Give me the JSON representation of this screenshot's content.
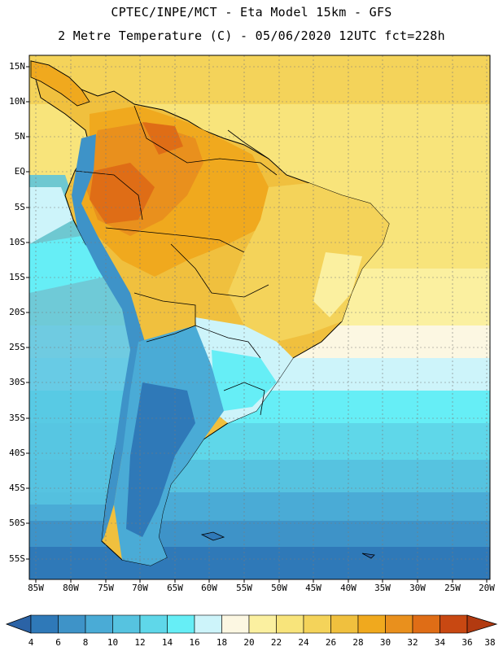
{
  "header": {
    "line1": "CPTEC/INPE/MCT -  Eta Model 15km - GFS",
    "line2": "2 Metre Temperature (C) - 05/06/2020 12UTC fct=228h"
  },
  "map": {
    "lat_labels": [
      "15N",
      "10N",
      "5N",
      "EQ",
      "5S",
      "10S",
      "15S",
      "20S",
      "25S",
      "30S",
      "35S",
      "40S",
      "45S",
      "50S",
      "55S"
    ],
    "lon_labels": [
      "85W",
      "80W",
      "75W",
      "70W",
      "65W",
      "60W",
      "55W",
      "50W",
      "45W",
      "40W",
      "35W",
      "30W",
      "25W",
      "20W"
    ]
  },
  "legend": {
    "labels": [
      "4",
      "6",
      "8",
      "10",
      "12",
      "14",
      "16",
      "18",
      "20",
      "22",
      "24",
      "26",
      "28",
      "30",
      "32",
      "34",
      "36",
      "38"
    ],
    "colors": [
      "#2b63a6",
      "#2f79b8",
      "#3e93c8",
      "#4aabd6",
      "#56c3e0",
      "#5fd7e9",
      "#66eef6",
      "#cdf4fa",
      "#fcf7e2",
      "#fbf0a0",
      "#f8e47b",
      "#f4d35a",
      "#f0c03e",
      "#f0a91e",
      "#e9901d",
      "#df6d16",
      "#c84812",
      "#b23a10"
    ]
  }
}
